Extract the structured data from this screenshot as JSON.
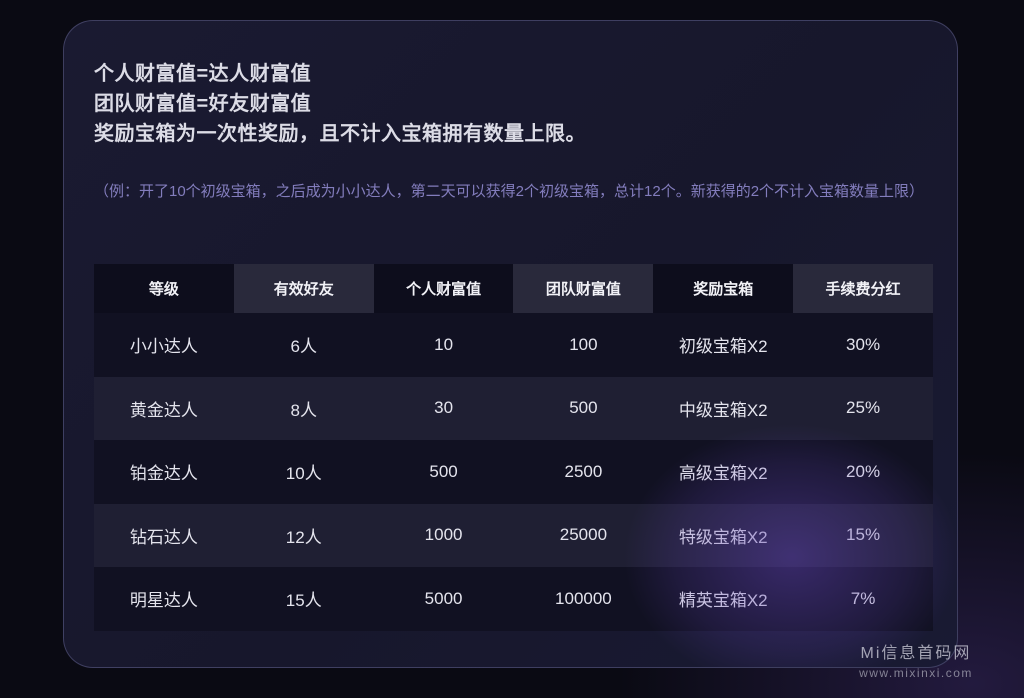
{
  "intro": {
    "lines": [
      "个人财富值=达人财富值",
      "团队财富值=好友财富值",
      "奖励宝箱为一次性奖励，且不计入宝箱拥有数量上限。"
    ],
    "note": "（例：开了10个初级宝箱，之后成为小小达人，第二天可以获得2个初级宝箱，总计12个。新获得的2个不计入宝箱数量上限）"
  },
  "table": {
    "headers": [
      "等级",
      "有效好友",
      "个人财富值",
      "团队财富值",
      "奖励宝箱",
      "手续费分红"
    ],
    "rows": [
      [
        "小小达人",
        "6人",
        "10",
        "100",
        "初级宝箱X2",
        "30%"
      ],
      [
        "黄金达人",
        "8人",
        "30",
        "500",
        "中级宝箱X2",
        "25%"
      ],
      [
        "铂金达人",
        "10人",
        "500",
        "2500",
        "高级宝箱X2",
        "20%"
      ],
      [
        "钻石达人",
        "12人",
        "1000",
        "25000",
        "特级宝箱X2",
        "15%"
      ],
      [
        "明星达人",
        "15人",
        "5000",
        "100000",
        "精英宝箱X2",
        "7%"
      ]
    ]
  },
  "watermark": {
    "line1": "Mi信息首码网",
    "line2": "www.mixinxi.com"
  },
  "colors": {
    "page_bg": "#0a0a13",
    "card_bg": "#17172c",
    "header_cell_dark": "#0d0d1c",
    "header_cell_light": "#29293b",
    "row_dark": "#111122",
    "row_light": "#1f1f33",
    "text_primary": "#dcdce6",
    "text_cell": "#e4e4ed",
    "note_text": "#837dbd",
    "glow_purple": "#6042b2"
  }
}
